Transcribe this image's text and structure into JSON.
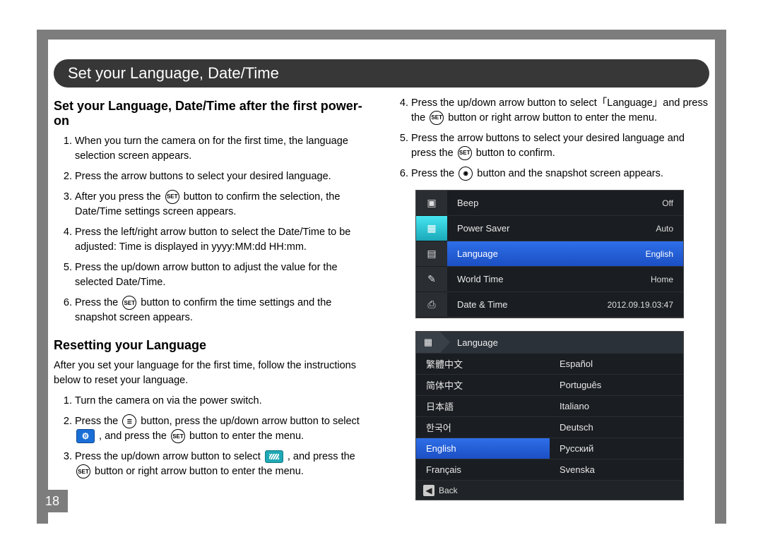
{
  "page_number": "18",
  "title": "Set your Language, Date/Time",
  "left": {
    "heading1": "Set your Language, Date/Time after the first power-on",
    "steps1": [
      "When you turn the camera on for the first time, the language selection screen appears.",
      "Press the arrow buttons to select your desired language.",
      "After you press the SET button to confirm the selection, the Date/Time settings screen appears.",
      "Press the left/right arrow button to select the Date/Time to be adjusted: Time is displayed in yyyy:MM:dd HH:mm.",
      "Press the up/down arrow button to adjust the value for the selected Date/Time.",
      "Press the SET button to confirm the time settings and the snapshot screen appears."
    ],
    "heading2": "Resetting your Language",
    "intro2": "After you set your language for the first time, follow the instructions below to reset your language.",
    "steps2": [
      "Turn the camera on via the power switch.",
      "Press the MENU button, press the up/down arrow button to select SETUP , and press the SET button to enter the menu.",
      "Press the up/down arrow button to select WRENCH , and press the SET button or right arrow button to enter the menu."
    ]
  },
  "right": {
    "steps": [
      "Press the up/down arrow button to select「Language」and press the SET button or right arrow button to enter the menu.",
      "Press the arrow buttons to select your desired language and press the SET button to confirm.",
      "Press the SNAPSHOT button and the snapshot screen appears."
    ],
    "menu1": {
      "rows": [
        {
          "label": "Beep",
          "value": "Off"
        },
        {
          "label": "Power Saver",
          "value": "Auto"
        },
        {
          "label": "Language",
          "value": "English",
          "selected": true
        },
        {
          "label": "World Time",
          "value": "Home"
        },
        {
          "label": "Date & Time",
          "value": "2012.09.19.03:47"
        }
      ]
    },
    "menu2": {
      "header": "Language",
      "selected": "English",
      "cells": [
        [
          "繁體中文",
          "Español"
        ],
        [
          "简体中文",
          "Português"
        ],
        [
          "日本語",
          "Italiano"
        ],
        [
          "한국어",
          "Deutsch"
        ],
        [
          "English",
          "Русский"
        ],
        [
          "Français",
          "Svenska"
        ]
      ],
      "back": "Back"
    }
  },
  "colors": {
    "frame_gray": "#7d7d7d",
    "pill_bg": "#373737",
    "menu_bg": "#1a1d21",
    "menu_selected": "#2e6fe8",
    "icon_active": "#1aa8b8"
  }
}
